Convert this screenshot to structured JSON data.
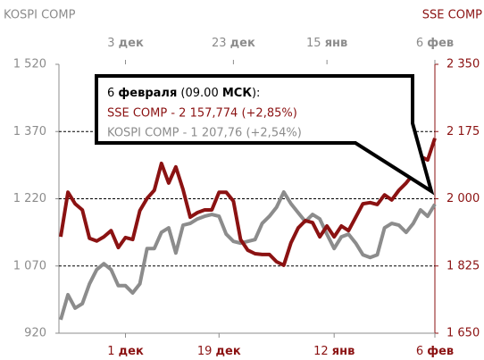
{
  "chart_data": {
    "type": "line",
    "y_axis_name": "KOSPI COMP",
    "y2_axis_name": "SSE COMP",
    "xlim": [
      0,
      52
    ],
    "xticks": [
      {
        "value": 9,
        "label": "1 дек"
      },
      {
        "value": 22,
        "label": "19 дек"
      },
      {
        "value": 38,
        "label": "12 янв"
      },
      {
        "value": 52,
        "label": "6 фев"
      }
    ],
    "x2ticks": [
      {
        "value": 9,
        "label": "3 дек"
      },
      {
        "value": 24,
        "label": "23 дек"
      },
      {
        "value": 37,
        "label": "15 янв"
      },
      {
        "value": 52,
        "label": "6 фев"
      }
    ],
    "ylim": [
      920,
      1520
    ],
    "yticks": [
      {
        "value": 920,
        "label": "920"
      },
      {
        "value": 1070,
        "label": "1 070"
      },
      {
        "value": 1220,
        "label": "1 220"
      },
      {
        "value": 1370,
        "label": "1 370"
      },
      {
        "value": 1520,
        "label": "1 520"
      }
    ],
    "y2lim": [
      1650,
      2350
    ],
    "y2ticks": [
      {
        "value": 1650,
        "label": "1 650"
      },
      {
        "value": 1825,
        "label": "1 825"
      },
      {
        "value": 2000,
        "label": "2 000"
      },
      {
        "value": 2175,
        "label": "2 175"
      },
      {
        "value": 2350,
        "label": "2 350"
      }
    ],
    "grid": true,
    "series": [
      {
        "name": "SSE COMP",
        "color": "#8b1212",
        "axis": "y2",
        "values": [
          1901,
          2017,
          1987,
          1971,
          1897,
          1890,
          1901,
          1917,
          1873,
          1899,
          1894,
          1969,
          2001,
          2022,
          2092,
          2041,
          2083,
          2024,
          1952,
          1964,
          1971,
          1971,
          2017,
          2017,
          1994,
          1894,
          1866,
          1857,
          1855,
          1855,
          1836,
          1827,
          1885,
          1924,
          1943,
          1938,
          1901,
          1929,
          1901,
          1929,
          1917,
          1952,
          1987,
          1990,
          1985,
          2010,
          1997,
          2022,
          2041,
          2064,
          2110,
          2101,
          2157.774
        ]
      },
      {
        "name": "KOSPI COMP",
        "color": "#8c8c8c",
        "values": [
          950,
          1006,
          976,
          986,
          1030,
          1062,
          1075,
          1062,
          1026,
          1026,
          1010,
          1030,
          1109,
          1109,
          1145,
          1155,
          1099,
          1161,
          1165,
          1175,
          1181,
          1185,
          1181,
          1141,
          1125,
          1121,
          1125,
          1129,
          1165,
          1181,
          1201,
          1235,
          1209,
          1189,
          1169,
          1185,
          1175,
          1141,
          1109,
          1135,
          1141,
          1121,
          1095,
          1089,
          1095,
          1155,
          1165,
          1161,
          1145,
          1165,
          1195,
          1181,
          1207.76
        ]
      }
    ],
    "annotation": {
      "heading": [
        {
          "text": "6 ",
          "bold": false
        },
        {
          "text": "февраля",
          "bold": true
        },
        {
          "text": " (09.00 ",
          "bold": false
        },
        {
          "text": "МСК",
          "bold": true
        },
        {
          "text": "):",
          "bold": false
        }
      ],
      "lines": [
        {
          "text": "SSE COMP - 2 157,774 (+2,85%)",
          "color": "#8b1212"
        },
        {
          "text": "KOSPI COMP - 1 207,76 (+2,54%)",
          "color": "#8c8c8c"
        }
      ]
    }
  }
}
